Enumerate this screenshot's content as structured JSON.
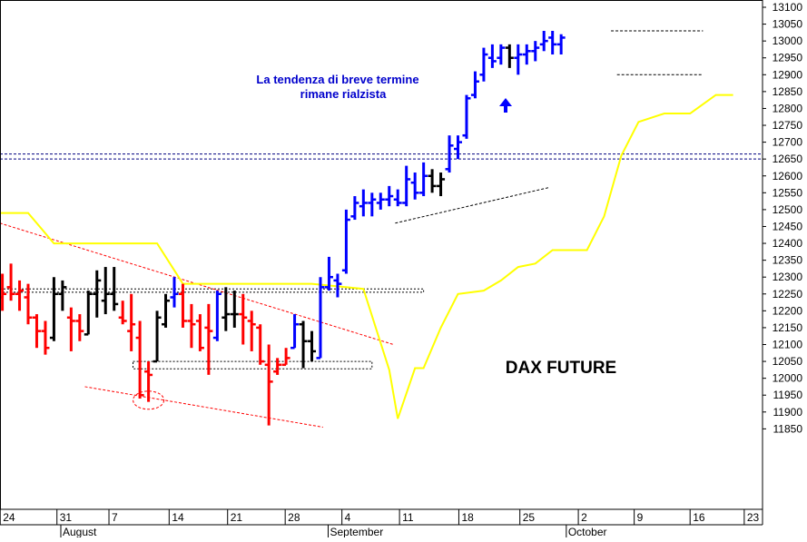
{
  "chart_data": {
    "type": "ohlc",
    "title": "DAX FUTURE",
    "annotation": [
      "La tendenza di breve termine",
      "rimane rialzista"
    ],
    "ylim": [
      11800,
      13110
    ],
    "y_ticks": [
      11850,
      11900,
      11950,
      12000,
      12050,
      12100,
      12150,
      12200,
      12250,
      12300,
      12350,
      12400,
      12450,
      12500,
      12550,
      12600,
      12650,
      12700,
      12750,
      12800,
      12850,
      12900,
      12950,
      13000,
      13050,
      13100
    ],
    "x_ticks": [
      "24",
      "31",
      "7",
      "14",
      "21",
      "28",
      "4",
      "11",
      "18",
      "25",
      "2",
      "9",
      "16",
      "23"
    ],
    "month_labels": [
      "August",
      "September",
      "October"
    ],
    "colors": {
      "bullish": "#0000ff",
      "bearish": "#ff0000",
      "neutral": "#000000",
      "moving_average": "#ffff00",
      "trendline": "#ff0000",
      "resistance": "#000080",
      "annotation": "#0000cc"
    },
    "bars": [
      {
        "o": 12240,
        "h": 12310,
        "l": 12200,
        "c": 12250,
        "color": "red"
      },
      {
        "o": 12270,
        "h": 12340,
        "l": 12230,
        "c": 12250,
        "color": "red"
      },
      {
        "o": 12250,
        "h": 12290,
        "l": 12200,
        "c": 12260,
        "color": "red"
      },
      {
        "o": 12240,
        "h": 12280,
        "l": 12160,
        "c": 12180,
        "color": "red"
      },
      {
        "o": 12180,
        "h": 12190,
        "l": 12090,
        "c": 12140,
        "color": "red"
      },
      {
        "o": 12140,
        "h": 12170,
        "l": 12070,
        "c": 12090,
        "color": "red"
      },
      {
        "o": 12120,
        "h": 12300,
        "l": 12110,
        "c": 12250,
        "color": "black"
      },
      {
        "o": 12250,
        "h": 12290,
        "l": 12200,
        "c": 12270,
        "color": "black"
      },
      {
        "o": 12180,
        "h": 12210,
        "l": 12080,
        "c": 12170,
        "color": "red"
      },
      {
        "o": 12170,
        "h": 12190,
        "l": 12110,
        "c": 12140,
        "color": "red"
      },
      {
        "o": 12130,
        "h": 12260,
        "l": 12130,
        "c": 12250,
        "color": "black"
      },
      {
        "o": 12250,
        "h": 12320,
        "l": 12180,
        "c": 12290,
        "color": "black"
      },
      {
        "o": 12230,
        "h": 12330,
        "l": 12190,
        "c": 12250,
        "color": "black"
      },
      {
        "o": 12250,
        "h": 12330,
        "l": 12200,
        "c": 12220,
        "color": "black"
      },
      {
        "o": 12180,
        "h": 12230,
        "l": 12160,
        "c": 12170,
        "color": "red"
      },
      {
        "o": 12140,
        "h": 12250,
        "l": 12080,
        "c": 12160,
        "color": "red"
      },
      {
        "o": 12120,
        "h": 12170,
        "l": 11940,
        "c": 11950,
        "color": "red"
      },
      {
        "o": 12020,
        "h": 12050,
        "l": 11930,
        "c": 12010,
        "color": "red"
      },
      {
        "o": 12050,
        "h": 12200,
        "l": 12050,
        "c": 12180,
        "color": "black"
      },
      {
        "o": 12160,
        "h": 12250,
        "l": 12150,
        "c": 12230,
        "color": "black"
      },
      {
        "o": 12240,
        "h": 12300,
        "l": 12210,
        "c": 12250,
        "color": "blue"
      },
      {
        "o": 12250,
        "h": 12280,
        "l": 12150,
        "c": 12170,
        "color": "red"
      },
      {
        "o": 12170,
        "h": 12220,
        "l": 12090,
        "c": 12160,
        "color": "red"
      },
      {
        "o": 12170,
        "h": 12190,
        "l": 12080,
        "c": 12090,
        "color": "red"
      },
      {
        "o": 12150,
        "h": 12220,
        "l": 12010,
        "c": 12140,
        "color": "red"
      },
      {
        "o": 12120,
        "h": 12260,
        "l": 12110,
        "c": 12250,
        "color": "blue"
      },
      {
        "o": 12180,
        "h": 12270,
        "l": 12140,
        "c": 12190,
        "color": "black"
      },
      {
        "o": 12190,
        "h": 12260,
        "l": 12150,
        "c": 12190,
        "color": "black"
      },
      {
        "o": 12190,
        "h": 12250,
        "l": 12100,
        "c": 12180,
        "color": "red"
      },
      {
        "o": 12170,
        "h": 12200,
        "l": 12080,
        "c": 12160,
        "color": "red"
      },
      {
        "o": 12150,
        "h": 12160,
        "l": 12040,
        "c": 12050,
        "color": "red"
      },
      {
        "o": 12040,
        "h": 12100,
        "l": 11860,
        "c": 11990,
        "color": "red"
      },
      {
        "o": 12020,
        "h": 12060,
        "l": 12010,
        "c": 12040,
        "color": "red"
      },
      {
        "o": 12040,
        "h": 12090,
        "l": 12040,
        "c": 12060,
        "color": "red"
      },
      {
        "o": 12090,
        "h": 12190,
        "l": 12090,
        "c": 12160,
        "color": "blue"
      },
      {
        "o": 12160,
        "h": 12170,
        "l": 12030,
        "c": 12110,
        "color": "black"
      },
      {
        "o": 12110,
        "h": 12140,
        "l": 12050,
        "c": 12080,
        "color": "black"
      },
      {
        "o": 12060,
        "h": 12300,
        "l": 12060,
        "c": 12270,
        "color": "blue"
      },
      {
        "o": 12270,
        "h": 12360,
        "l": 12260,
        "c": 12300,
        "color": "blue"
      },
      {
        "o": 12290,
        "h": 12310,
        "l": 12240,
        "c": 12280,
        "color": "blue"
      },
      {
        "o": 12320,
        "h": 12500,
        "l": 12310,
        "c": 12470,
        "color": "blue"
      },
      {
        "o": 12480,
        "h": 12540,
        "l": 12470,
        "c": 12520,
        "color": "blue"
      },
      {
        "o": 12510,
        "h": 12560,
        "l": 12480,
        "c": 12520,
        "color": "blue"
      },
      {
        "o": 12520,
        "h": 12550,
        "l": 12480,
        "c": 12530,
        "color": "blue"
      },
      {
        "o": 12520,
        "h": 12550,
        "l": 12500,
        "c": 12530,
        "color": "blue"
      },
      {
        "o": 12530,
        "h": 12570,
        "l": 12510,
        "c": 12540,
        "color": "blue"
      },
      {
        "o": 12530,
        "h": 12560,
        "l": 12510,
        "c": 12520,
        "color": "blue"
      },
      {
        "o": 12520,
        "h": 12630,
        "l": 12510,
        "c": 12590,
        "color": "blue"
      },
      {
        "o": 12580,
        "h": 12610,
        "l": 12530,
        "c": 12550,
        "color": "blue"
      },
      {
        "o": 12550,
        "h": 12640,
        "l": 12540,
        "c": 12600,
        "color": "blue"
      },
      {
        "o": 12600,
        "h": 12620,
        "l": 12550,
        "c": 12570,
        "color": "black"
      },
      {
        "o": 12570,
        "h": 12610,
        "l": 12540,
        "c": 12590,
        "color": "black"
      },
      {
        "o": 12620,
        "h": 12720,
        "l": 12610,
        "c": 12690,
        "color": "blue"
      },
      {
        "o": 12680,
        "h": 12720,
        "l": 12650,
        "c": 12700,
        "color": "blue"
      },
      {
        "o": 12720,
        "h": 12840,
        "l": 12710,
        "c": 12830,
        "color": "blue"
      },
      {
        "o": 12840,
        "h": 12910,
        "l": 12830,
        "c": 12880,
        "color": "blue"
      },
      {
        "o": 12900,
        "h": 12980,
        "l": 12880,
        "c": 12960,
        "color": "blue"
      },
      {
        "o": 12950,
        "h": 12990,
        "l": 12920,
        "c": 12940,
        "color": "blue"
      },
      {
        "o": 12950,
        "h": 12990,
        "l": 12930,
        "c": 12980,
        "color": "blue"
      },
      {
        "o": 12980,
        "h": 12990,
        "l": 12920,
        "c": 12950,
        "color": "black"
      },
      {
        "o": 12950,
        "h": 12990,
        "l": 12900,
        "c": 12960,
        "color": "blue"
      },
      {
        "o": 12960,
        "h": 12990,
        "l": 12930,
        "c": 12970,
        "color": "blue"
      },
      {
        "o": 12970,
        "h": 13000,
        "l": 12940,
        "c": 12980,
        "color": "blue"
      },
      {
        "o": 12990,
        "h": 13030,
        "l": 12970,
        "c": 13000,
        "color": "blue"
      },
      {
        "o": 13010,
        "h": 13030,
        "l": 12960,
        "c": 12990,
        "color": "blue"
      },
      {
        "o": 12990,
        "h": 13020,
        "l": 12960,
        "c": 13010,
        "color": "blue"
      }
    ],
    "moving_average": [
      {
        "bar": -2,
        "value": 12490
      },
      {
        "bar": 3,
        "value": 12490
      },
      {
        "bar": 6,
        "value": 12400
      },
      {
        "bar": 18,
        "value": 12400
      },
      {
        "bar": 21,
        "value": 12280
      },
      {
        "bar": 36,
        "value": 12280
      },
      {
        "bar": 42,
        "value": 12265
      },
      {
        "bar": 45,
        "value": 12025
      },
      {
        "bar": 46,
        "value": 11880
      },
      {
        "bar": 48,
        "value": 12030
      },
      {
        "bar": 49,
        "value": 12030
      },
      {
        "bar": 51,
        "value": 12150
      },
      {
        "bar": 53,
        "value": 12250
      },
      {
        "bar": 56,
        "value": 12260
      },
      {
        "bar": 58,
        "value": 12290
      },
      {
        "bar": 60,
        "value": 12330
      },
      {
        "bar": 62,
        "value": 12340
      },
      {
        "bar": 64,
        "value": 12380
      },
      {
        "bar": 68,
        "value": 12380
      },
      {
        "bar": 70,
        "value": 12480
      },
      {
        "bar": 72,
        "value": 12660
      },
      {
        "bar": 74,
        "value": 12760
      },
      {
        "bar": 77,
        "value": 12785
      },
      {
        "bar": 80,
        "value": 12785
      },
      {
        "bar": 83,
        "value": 12840
      },
      {
        "bar": 85,
        "value": 12840
      }
    ],
    "support_resistance_lines": [
      12665,
      12650
    ],
    "consolidation_box_upper": [
      12265,
      12255
    ],
    "consolidation_box_lower": [
      12050,
      12028
    ],
    "upper_range_box": [
      13030,
      12900
    ]
  }
}
